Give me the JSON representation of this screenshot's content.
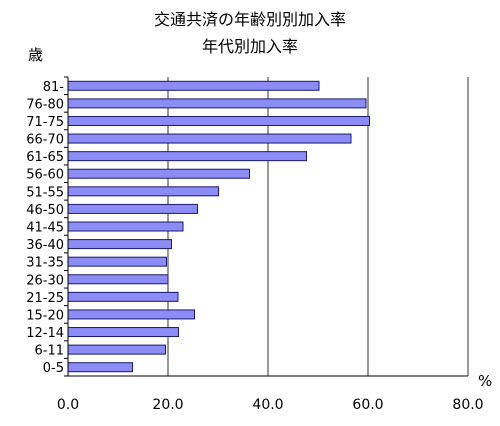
{
  "chart_data": {
    "type": "bar",
    "orientation": "horizontal",
    "title": "交通共済の年齢別別加入率",
    "subtitle": "年代別加入率",
    "ylabel": "歳",
    "xlabel": "%",
    "categories": [
      "81-",
      "76-80",
      "71-75",
      "66-70",
      "61-65",
      "56-60",
      "51-55",
      "46-50",
      "41-45",
      "36-40",
      "31-35",
      "26-30",
      "21-25",
      "15-20",
      "12-14",
      "6-11",
      "0-5"
    ],
    "values": [
      50.2,
      59.6,
      60.3,
      56.6,
      47.7,
      36.3,
      30.1,
      25.9,
      23.0,
      20.7,
      19.7,
      20.0,
      22.0,
      25.3,
      22.1,
      19.5,
      12.9
    ],
    "xlim": [
      0,
      80
    ],
    "xticks": [
      "0.0",
      "20.0",
      "40.0",
      "60.0",
      "80.0"
    ],
    "grid": true,
    "legend": "none",
    "colors": {
      "bar_fill": "#8c8cf5",
      "bar_edge": "#1a1a6e",
      "axis": "#000000",
      "grid": "#000000"
    }
  }
}
